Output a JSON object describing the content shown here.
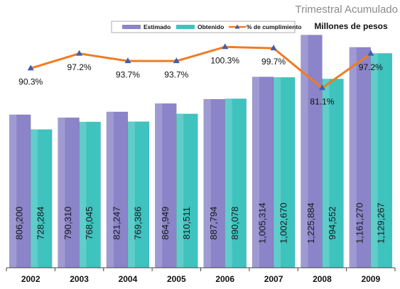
{
  "chart_data": {
    "type": "bar",
    "title": "Trimestral Acumulado",
    "subtitle": "Millones de pesos",
    "categories": [
      "2002",
      "2003",
      "2004",
      "2005",
      "2006",
      "2007",
      "2008",
      "2009"
    ],
    "series": [
      {
        "name": "Estimado",
        "color": "#8b84c9",
        "values": [
          806200,
          790310,
          821247,
          864949,
          887794,
          1005314,
          1225884,
          1161270
        ],
        "value_labels": [
          "806,200",
          "790,310",
          "821,247",
          "864,949",
          "887,794",
          "1,005,314",
          "1,225,884",
          "1,161,270"
        ]
      },
      {
        "name": "Obtenido",
        "color": "#3ec3bf",
        "values": [
          728284,
          768045,
          769386,
          810511,
          890078,
          1002670,
          994552,
          1129267
        ],
        "value_labels": [
          "728,284",
          "768,045",
          "769,386",
          "810,511",
          "890,078",
          "1,002,670",
          "994,552",
          "1,129,267"
        ]
      },
      {
        "name": "% de cumplimiento",
        "type": "line",
        "axis": "y2",
        "color": "#f07b22",
        "marker_color": "#3f5fae",
        "values": [
          90.3,
          97.2,
          93.7,
          93.7,
          100.3,
          99.7,
          81.1,
          97.2
        ],
        "value_labels": [
          "90.3%",
          "97.2%",
          "93.7%",
          "93.7%",
          "100.3%",
          "99.7%",
          "81.1%",
          "97.2%"
        ]
      }
    ],
    "ylim": [
      0,
      1250000
    ],
    "y2lim": [
      -3,
      108
    ],
    "legend": "top"
  }
}
